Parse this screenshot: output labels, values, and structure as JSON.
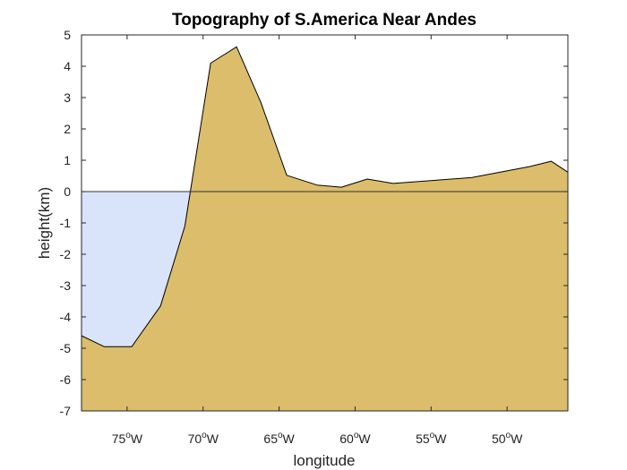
{
  "chart_data": {
    "type": "area",
    "title": "Topography of S.America Near Andes",
    "xlabel": "longitude",
    "ylabel": "height(km)",
    "xlim": [
      -78,
      -46
    ],
    "ylim": [
      -7,
      5
    ],
    "x_ticks": [
      {
        "value": -75,
        "deg": "75",
        "sup": "o",
        "dir": "W"
      },
      {
        "value": -70,
        "deg": "70",
        "sup": "o",
        "dir": "W"
      },
      {
        "value": -65,
        "deg": "65",
        "sup": "o",
        "dir": "W"
      },
      {
        "value": -60,
        "deg": "60",
        "sup": "o",
        "dir": "W"
      },
      {
        "value": -55,
        "deg": "55",
        "sup": "o",
        "dir": "W"
      },
      {
        "value": -50,
        "deg": "50",
        "sup": "o",
        "dir": "W"
      }
    ],
    "y_ticks": [
      "5",
      "4",
      "3",
      "2",
      "1",
      "0",
      "-1",
      "-2",
      "-3",
      "-4",
      "-5",
      "-6",
      "-7"
    ],
    "series": [
      {
        "x": [
          -78,
          -76.5,
          -74.7,
          -72.8,
          -71.2,
          -69.5,
          -67.8,
          -66.2,
          -64.5,
          -62.5,
          -60.9,
          -59.2,
          -57.5,
          -55.3,
          -52.3,
          -48.5,
          -47.1,
          -46
        ],
        "y": [
          -4.6,
          -4.95,
          -4.95,
          -3.65,
          -1.1,
          4.1,
          4.62,
          2.85,
          0.52,
          0.21,
          0.14,
          0.4,
          0.26,
          0.34,
          0.45,
          0.8,
          0.97,
          0.62
        ]
      }
    ],
    "ocean_color": "#d9e4fb",
    "land_color": "#dbbd6b",
    "zero_line": true,
    "grid": false
  }
}
